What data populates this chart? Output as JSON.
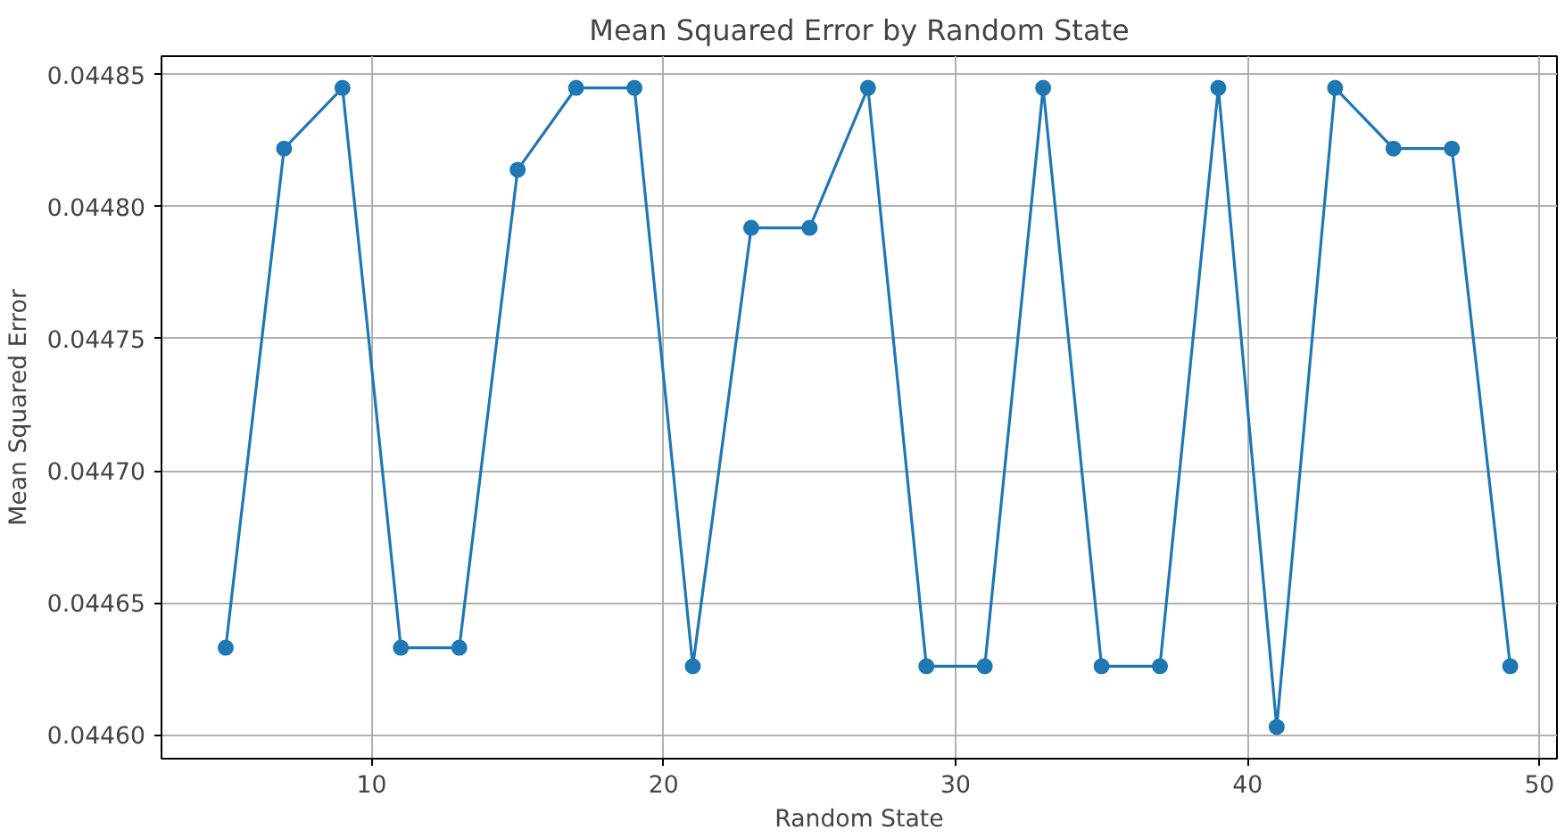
{
  "chart_data": {
    "type": "line",
    "title": "Mean Squared Error by Random State",
    "xlabel": "Random State",
    "ylabel": "Mean Squared Error",
    "x": [
      5,
      7,
      9,
      11,
      13,
      15,
      17,
      19,
      21,
      23,
      25,
      27,
      29,
      31,
      33,
      35,
      37,
      39,
      41,
      43,
      45,
      47,
      49
    ],
    "series": [
      {
        "color": "#1f77b4",
        "values": [
          0.044633,
          0.044822,
          0.044845,
          0.044633,
          0.044633,
          0.044814,
          0.044845,
          0.044845,
          0.044626,
          0.044792,
          0.044792,
          0.044845,
          0.044626,
          0.044626,
          0.044845,
          0.044626,
          0.044626,
          0.044845,
          0.044603,
          0.044845,
          0.044822,
          0.044822,
          0.044626
        ]
      }
    ],
    "xlim": [
      2.8,
      50.6
    ],
    "xticks": [
      10,
      20,
      30,
      40,
      50
    ],
    "ylim": [
      0.044591,
      0.044857
    ],
    "yticks": [
      {
        "value": 0.0446,
        "label": "0.04460"
      },
      {
        "value": 0.04465,
        "label": "0.04465"
      },
      {
        "value": 0.0447,
        "label": "0.04470"
      },
      {
        "value": 0.04475,
        "label": "0.04475"
      },
      {
        "value": 0.0448,
        "label": "0.04480"
      },
      {
        "value": 0.04485,
        "label": "0.04485"
      }
    ],
    "grid": true,
    "marker": "circle",
    "line_style": "solid"
  }
}
